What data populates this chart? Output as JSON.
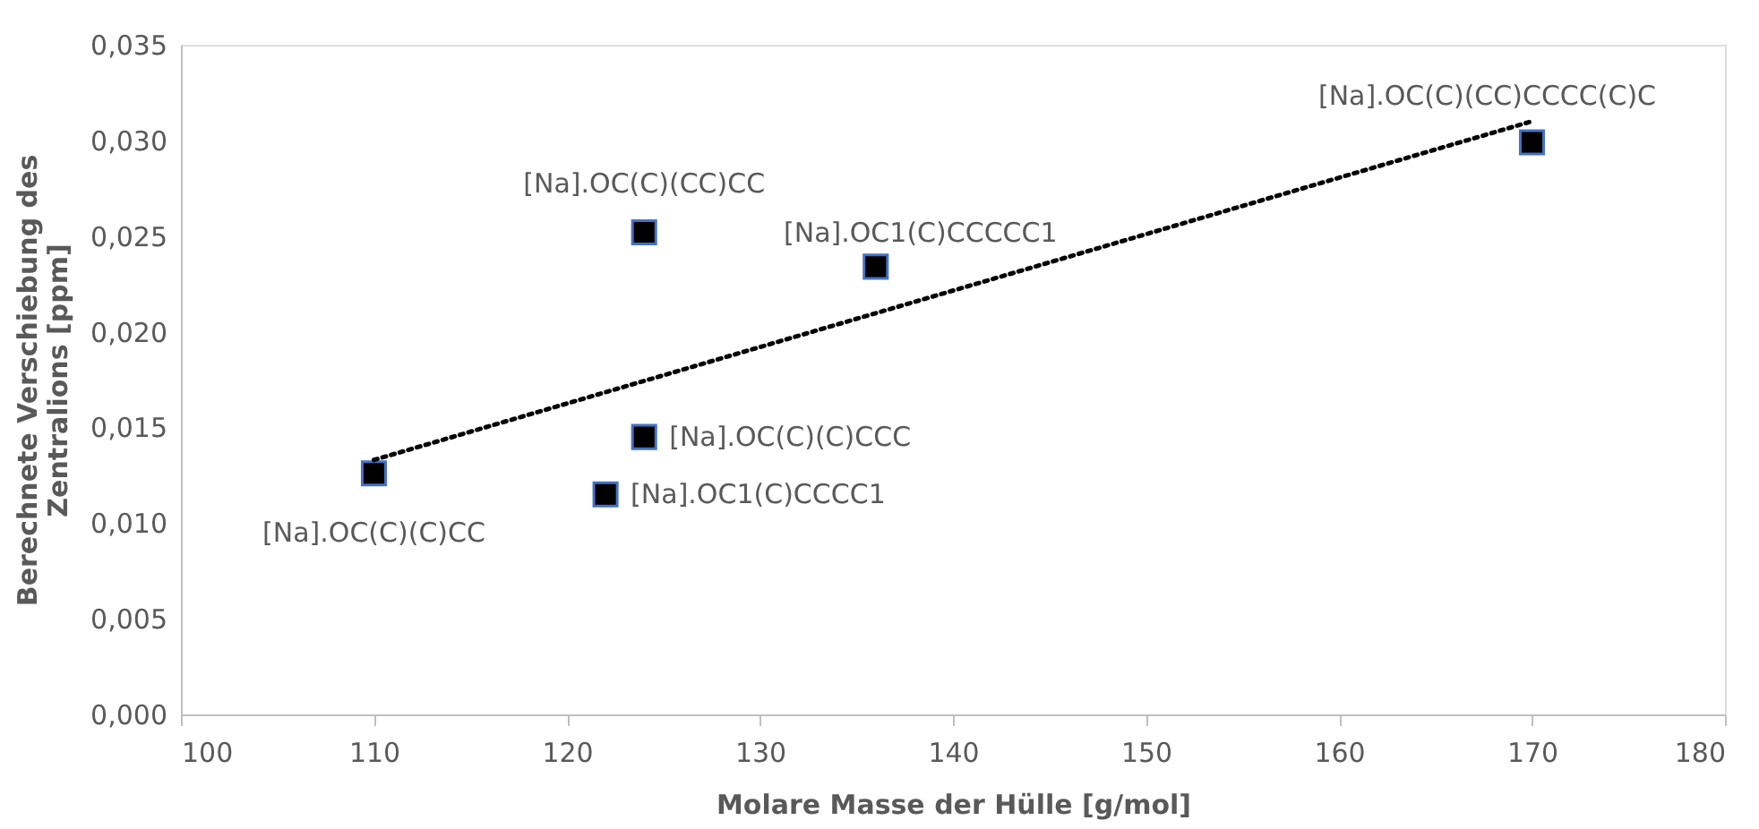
{
  "chart_data": {
    "type": "scatter",
    "xlabel": "Molare Masse der Hülle [g/mol]",
    "ylabel": "Berechnete Verschiebung des Zentralions [ppm]",
    "xlim": [
      100,
      180
    ],
    "xticks": [
      100,
      110,
      120,
      130,
      140,
      150,
      160,
      170,
      180
    ],
    "ylim": [
      0,
      0.035
    ],
    "yticks": [
      {
        "value": 0,
        "label": "0,000"
      },
      {
        "value": 0.005,
        "label": "0,005"
      },
      {
        "value": 0.01,
        "label": "0,010"
      },
      {
        "value": 0.015,
        "label": "0,015"
      },
      {
        "value": 0.02,
        "label": "0,020"
      },
      {
        "value": 0.025,
        "label": "0,025"
      },
      {
        "value": 0.03,
        "label": "0,030"
      },
      {
        "value": 0.035,
        "label": "0,035"
      }
    ],
    "grid": false,
    "marker": "square",
    "series": [
      {
        "color": "#000000",
        "x": [
          110,
          124,
          136,
          124,
          122,
          170
        ],
        "values": [
          0.0126,
          0.0252,
          0.0234,
          0.0145,
          0.0115,
          0.0299
        ]
      },
      {
        "type": "line",
        "color": "#000000",
        "marker": "none",
        "line_style": "dotted",
        "x": [
          110,
          170
        ],
        "values": [
          0.0133,
          0.031
        ]
      }
    ],
    "annotations": [
      {
        "text": "[Na].OC(C)(C)CC",
        "x": 110,
        "y": 0.0126
      },
      {
        "text": "[Na].OC(C)(CC)CC",
        "x": 124,
        "y": 0.0252
      },
      {
        "text": "[Na].OC1(C)CCCCC1",
        "x": 136,
        "y": 0.0234
      },
      {
        "text": "[Na].OC(C)(C)CCC",
        "x": 124,
        "y": 0.0145
      },
      {
        "text": "[Na].OC1(C)CCCC1",
        "x": 122,
        "y": 0.0115
      },
      {
        "text": "[Na].OC(C)(CC)CCCC(C)C",
        "x": 170,
        "y": 0.0299
      }
    ]
  }
}
